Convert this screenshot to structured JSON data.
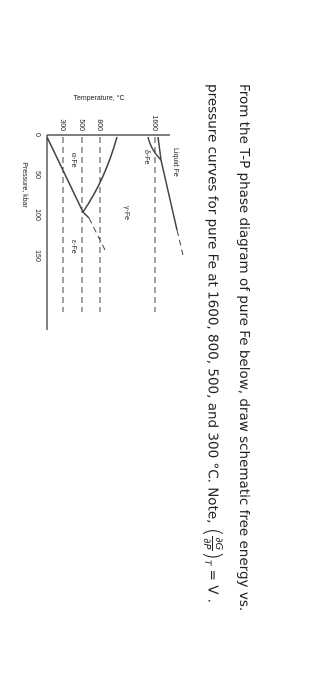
{
  "question": {
    "text": "From the T-P phase diagram of pure Fe below, draw schematic free energy vs. pressure curves for pure Fe at 1600, 800, 500, and 300 °C. Note,",
    "equation": {
      "numerator": "∂G",
      "denominator": "∂P",
      "subscript": "T",
      "rhs": "= V ."
    }
  },
  "diagram": {
    "y_axis_title": "Temperature, °C",
    "x_axis_title": "Pressure, kbar",
    "y_ticks": [
      "1600",
      "800",
      "500",
      "300"
    ],
    "x_ticks": [
      "0",
      "50",
      "100",
      "150"
    ],
    "phases": [
      "Liquid Fe",
      "δ-Fe",
      "γ-Fe",
      "α-Fe",
      "ε-Fe"
    ]
  }
}
